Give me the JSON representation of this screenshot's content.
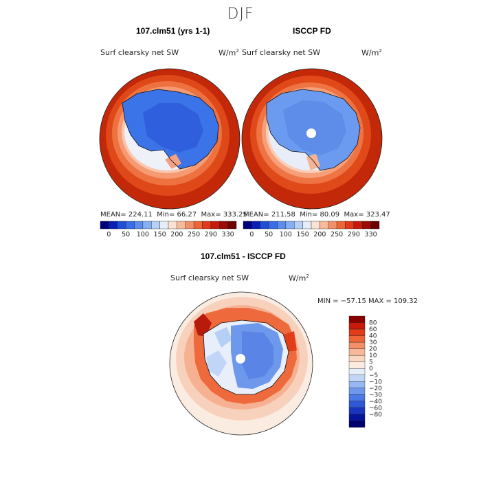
{
  "season": "DJF",
  "panels": [
    {
      "title": "107.clm51 (yrs 1-1)",
      "variable": "Surf clearsky net SW",
      "units_base": "W/m",
      "units_exp": "2",
      "mean_label": "MEAN=",
      "mean": "224.11",
      "min_label": "Min=",
      "min": "66.27",
      "max_label": "Max=",
      "max": "333.25",
      "polar_hole": false
    },
    {
      "title": "ISCCP FD",
      "variable": "Surf clearsky net SW",
      "units_base": "W/m",
      "units_exp": "2",
      "mean_label": "MEAN=",
      "mean": "211.58",
      "min_label": "Min=",
      "min": "80.09",
      "max_label": "Max=",
      "max": "323.47",
      "polar_hole": true
    }
  ],
  "colorbar_abs": {
    "colors": [
      "#00007f",
      "#0a1fb4",
      "#1f4fd7",
      "#3a6ee6",
      "#5d8def",
      "#86aef5",
      "#b6d0f8",
      "#e6eefa",
      "#fbe3d3",
      "#f7bb9b",
      "#f3906a",
      "#ee6637",
      "#e3391a",
      "#c71a0a",
      "#9c0a06",
      "#6e0000"
    ],
    "labels": [
      "0",
      "50",
      "100",
      "150",
      "200",
      "250",
      "290",
      "330"
    ]
  },
  "diff": {
    "title": "107.clm51 - ISCCP FD",
    "variable": "Surf clearsky net SW",
    "units_base": "W/m",
    "units_exp": "2",
    "minmax": "MIN = −57.15 MAX = 109.32",
    "colorbar": {
      "colors": [
        "#8b0000",
        "#c8190a",
        "#e23c19",
        "#ee6637",
        "#f3906a",
        "#f7b798",
        "#fbd7c2",
        "#fbece2",
        "#e6eefa",
        "#c1d6f7",
        "#96b8f2",
        "#6e98ec",
        "#4a78e4",
        "#2f58d8",
        "#1a35bd",
        "#06139b",
        "#00006e"
      ],
      "labels": [
        "80",
        "60",
        "40",
        "30",
        "20",
        "10",
        "5",
        "0",
        "−5",
        "−10",
        "−20",
        "−30",
        "−40",
        "−60",
        "−80"
      ]
    }
  },
  "chart_data": {
    "type": "heatmap",
    "title": "DJF",
    "projection": "south polar stereographic",
    "maps": [
      {
        "name": "107.clm51 (yrs 1-1)",
        "variable": "Surf clearsky net SW",
        "units": "W/m2",
        "mean": 224.11,
        "min": 66.27,
        "max": 333.25
      },
      {
        "name": "ISCCP FD",
        "variable": "Surf clearsky net SW",
        "units": "W/m2",
        "mean": 211.58,
        "min": 80.09,
        "max": 323.47
      },
      {
        "name": "107.clm51 - ISCCP FD",
        "variable": "Surf clearsky net SW",
        "units": "W/m2",
        "min": -57.15,
        "max": 109.32
      }
    ],
    "contour_levels_abs": [
      0,
      50,
      100,
      150,
      200,
      250,
      290,
      330
    ],
    "contour_levels_diff": [
      -80,
      -60,
      -40,
      -30,
      -20,
      -10,
      -5,
      0,
      5,
      10,
      20,
      30,
      40,
      60,
      80
    ]
  }
}
